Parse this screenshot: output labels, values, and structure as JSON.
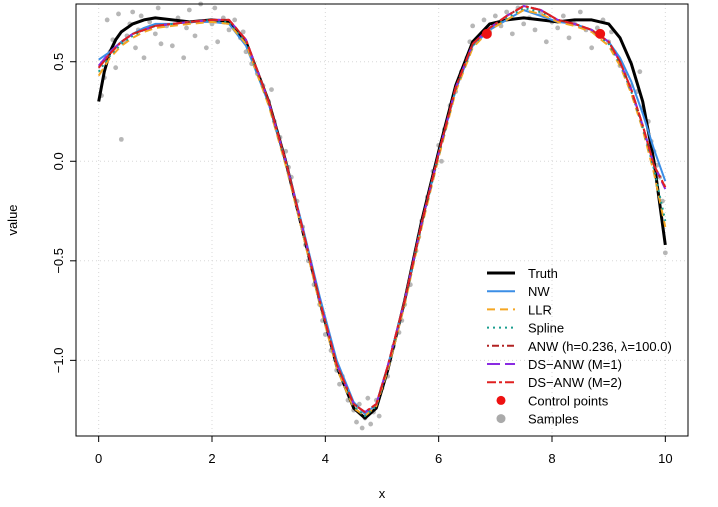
{
  "chart_data": {
    "type": "line",
    "title": "",
    "xlabel": "x",
    "ylabel": "value",
    "xlim": [
      -0.4,
      10.4
    ],
    "ylim": [
      -1.38,
      0.79
    ],
    "x_ticks": [
      0,
      2,
      4,
      6,
      8,
      10
    ],
    "x_tick_labels": [
      "0",
      "2",
      "4",
      "6",
      "8",
      "10"
    ],
    "y_ticks": [
      -1.0,
      -0.5,
      0.0,
      0.5
    ],
    "y_tick_labels": [
      "−1.0",
      "−0.5",
      "0.0",
      "0.5"
    ],
    "grid": true,
    "legend_position": "bottom-right",
    "series": [
      {
        "name": "Truth",
        "color": "#000000",
        "style": "solid",
        "x": [
          0,
          0.1,
          0.2,
          0.3,
          0.4,
          0.6,
          0.8,
          1.0,
          1.3,
          1.6,
          2.0,
          2.3,
          2.6,
          3.0,
          3.3,
          3.6,
          3.9,
          4.2,
          4.5,
          4.7,
          4.9,
          5.1,
          5.4,
          5.7,
          6.0,
          6.3,
          6.6,
          6.9,
          7.2,
          7.5,
          7.8,
          8.1,
          8.4,
          8.7,
          9.0,
          9.2,
          9.4,
          9.6,
          9.8,
          10.0
        ],
        "y": [
          0.3,
          0.45,
          0.55,
          0.61,
          0.65,
          0.69,
          0.71,
          0.72,
          0.71,
          0.7,
          0.71,
          0.7,
          0.6,
          0.3,
          0.0,
          -0.35,
          -0.7,
          -1.03,
          -1.24,
          -1.29,
          -1.24,
          -1.05,
          -0.7,
          -0.3,
          0.05,
          0.38,
          0.6,
          0.69,
          0.71,
          0.72,
          0.71,
          0.7,
          0.71,
          0.71,
          0.69,
          0.62,
          0.49,
          0.3,
          0.0,
          -0.42
        ]
      },
      {
        "name": "NW",
        "color": "#3b8ee6",
        "style": "solid",
        "x": [
          0,
          0.2,
          0.4,
          0.6,
          0.8,
          1.0,
          1.3,
          1.6,
          2.0,
          2.3,
          2.6,
          3.0,
          3.3,
          3.6,
          3.9,
          4.2,
          4.5,
          4.7,
          4.9,
          5.1,
          5.4,
          5.7,
          6.0,
          6.3,
          6.6,
          6.9,
          7.2,
          7.5,
          7.8,
          8.1,
          8.4,
          8.7,
          9.0,
          9.2,
          9.4,
          9.6,
          9.8,
          10.0
        ],
        "y": [
          0.51,
          0.55,
          0.6,
          0.64,
          0.67,
          0.69,
          0.69,
          0.7,
          0.7,
          0.69,
          0.58,
          0.29,
          0.0,
          -0.33,
          -0.68,
          -1.0,
          -1.21,
          -1.27,
          -1.22,
          -1.03,
          -0.7,
          -0.31,
          0.04,
          0.36,
          0.58,
          0.66,
          0.71,
          0.76,
          0.73,
          0.7,
          0.69,
          0.66,
          0.6,
          0.52,
          0.4,
          0.24,
          0.06,
          -0.1
        ]
      },
      {
        "name": "LLR",
        "color": "#f5a623",
        "style": "dashed",
        "x": [
          0,
          0.2,
          0.4,
          0.6,
          0.8,
          1.0,
          1.3,
          1.6,
          2.0,
          2.3,
          2.6,
          3.0,
          3.3,
          3.6,
          3.9,
          4.2,
          4.5,
          4.7,
          4.9,
          5.1,
          5.4,
          5.7,
          6.0,
          6.3,
          6.6,
          6.9,
          7.2,
          7.5,
          7.8,
          8.1,
          8.4,
          8.7,
          9.0,
          9.2,
          9.4,
          9.6,
          9.8,
          10.0
        ],
        "y": [
          0.43,
          0.52,
          0.58,
          0.62,
          0.65,
          0.67,
          0.68,
          0.69,
          0.7,
          0.69,
          0.59,
          0.28,
          -0.02,
          -0.36,
          -0.72,
          -1.04,
          -1.24,
          -1.28,
          -1.23,
          -1.05,
          -0.72,
          -0.33,
          0.02,
          0.35,
          0.57,
          0.66,
          0.71,
          0.76,
          0.74,
          0.7,
          0.68,
          0.65,
          0.58,
          0.48,
          0.34,
          0.16,
          -0.06,
          -0.33
        ]
      },
      {
        "name": "Spline",
        "color": "#1a9e8f",
        "style": "dotted",
        "x": [
          0,
          0.2,
          0.4,
          0.6,
          0.8,
          1.0,
          1.3,
          1.6,
          2.0,
          2.3,
          2.6,
          3.0,
          3.3,
          3.6,
          3.9,
          4.2,
          4.5,
          4.7,
          4.9,
          5.1,
          5.4,
          5.7,
          6.0,
          6.3,
          6.6,
          6.9,
          7.2,
          7.5,
          7.8,
          8.1,
          8.4,
          8.7,
          9.0,
          9.2,
          9.4,
          9.6,
          9.8,
          10.0
        ],
        "y": [
          0.45,
          0.53,
          0.59,
          0.63,
          0.66,
          0.68,
          0.69,
          0.7,
          0.71,
          0.7,
          0.6,
          0.29,
          -0.01,
          -0.35,
          -0.71,
          -1.03,
          -1.23,
          -1.28,
          -1.23,
          -1.04,
          -0.71,
          -0.32,
          0.03,
          0.36,
          0.58,
          0.67,
          0.72,
          0.77,
          0.75,
          0.71,
          0.69,
          0.66,
          0.59,
          0.49,
          0.35,
          0.17,
          -0.04,
          -0.3
        ]
      },
      {
        "name": "ANW (h=0.236, λ=100.0)",
        "color": "#b22222",
        "style": "dotdash",
        "x": [
          0,
          0.2,
          0.4,
          0.6,
          0.8,
          1.0,
          1.3,
          1.6,
          2.0,
          2.3,
          2.6,
          3.0,
          3.3,
          3.6,
          3.9,
          4.2,
          4.5,
          4.7,
          4.9,
          5.1,
          5.4,
          5.7,
          6.0,
          6.3,
          6.6,
          6.9,
          7.2,
          7.5,
          7.8,
          8.1,
          8.4,
          8.7,
          9.0,
          9.2,
          9.4,
          9.6,
          9.8,
          10.0
        ],
        "y": [
          0.47,
          0.54,
          0.6,
          0.64,
          0.66,
          0.68,
          0.69,
          0.7,
          0.71,
          0.71,
          0.61,
          0.3,
          0.0,
          -0.34,
          -0.7,
          -1.02,
          -1.22,
          -1.26,
          -1.22,
          -1.03,
          -0.7,
          -0.31,
          0.04,
          0.37,
          0.59,
          0.67,
          0.73,
          0.78,
          0.76,
          0.71,
          0.69,
          0.66,
          0.6,
          0.5,
          0.36,
          0.18,
          -0.02,
          -0.13
        ]
      },
      {
        "name": "DS−ANW (M=1)",
        "color": "#8a2be2",
        "style": "longdash",
        "x": [
          0,
          0.2,
          0.4,
          0.6,
          0.8,
          1.0,
          1.3,
          1.6,
          2.0,
          2.3,
          2.6,
          3.0,
          3.3,
          3.6,
          3.9,
          4.2,
          4.5,
          4.7,
          4.9,
          5.1,
          5.4,
          5.7,
          6.0,
          6.3,
          6.6,
          6.9,
          7.2,
          7.5,
          7.8,
          8.1,
          8.4,
          8.7,
          9.0,
          9.2,
          9.4,
          9.6,
          9.8,
          10.0
        ],
        "y": [
          0.48,
          0.55,
          0.6,
          0.64,
          0.66,
          0.68,
          0.69,
          0.7,
          0.71,
          0.71,
          0.61,
          0.3,
          0.0,
          -0.34,
          -0.7,
          -1.02,
          -1.22,
          -1.26,
          -1.22,
          -1.03,
          -0.7,
          -0.31,
          0.04,
          0.37,
          0.59,
          0.67,
          0.73,
          0.78,
          0.76,
          0.71,
          0.69,
          0.66,
          0.6,
          0.5,
          0.36,
          0.18,
          -0.02,
          -0.14
        ]
      },
      {
        "name": "DS−ANW (M=2)",
        "color": "#e02020",
        "style": "twodash",
        "x": [
          0,
          0.2,
          0.4,
          0.6,
          0.8,
          1.0,
          1.3,
          1.6,
          2.0,
          2.3,
          2.6,
          3.0,
          3.3,
          3.6,
          3.9,
          4.2,
          4.5,
          4.7,
          4.9,
          5.1,
          5.4,
          5.7,
          6.0,
          6.3,
          6.6,
          6.9,
          7.2,
          7.5,
          7.8,
          8.1,
          8.4,
          8.7,
          9.0,
          9.2,
          9.4,
          9.6,
          9.8,
          10.0
        ],
        "y": [
          0.47,
          0.54,
          0.6,
          0.64,
          0.66,
          0.68,
          0.69,
          0.7,
          0.71,
          0.71,
          0.61,
          0.3,
          0.0,
          -0.34,
          -0.7,
          -1.02,
          -1.22,
          -1.26,
          -1.22,
          -1.03,
          -0.7,
          -0.31,
          0.04,
          0.37,
          0.59,
          0.67,
          0.73,
          0.78,
          0.76,
          0.71,
          0.69,
          0.66,
          0.6,
          0.5,
          0.36,
          0.18,
          -0.02,
          -0.13
        ]
      }
    ],
    "control_points": {
      "name": "Control points",
      "color": "#ee1111",
      "points": [
        [
          6.85,
          0.64
        ],
        [
          8.85,
          0.64
        ]
      ]
    },
    "samples": {
      "name": "Samples",
      "color": "#aaaaaa",
      "points": [
        [
          0.05,
          0.33
        ],
        [
          0.1,
          0.42
        ],
        [
          0.15,
          0.71
        ],
        [
          0.2,
          0.55
        ],
        [
          0.25,
          0.61
        ],
        [
          0.3,
          0.47
        ],
        [
          0.35,
          0.74
        ],
        [
          0.4,
          0.11
        ],
        [
          0.45,
          0.6
        ],
        [
          0.5,
          0.63
        ],
        [
          0.55,
          0.69
        ],
        [
          0.6,
          0.75
        ],
        [
          0.65,
          0.57
        ],
        [
          0.7,
          0.66
        ],
        [
          0.75,
          0.73
        ],
        [
          0.8,
          0.52
        ],
        [
          0.9,
          0.7
        ],
        [
          1.0,
          0.64
        ],
        [
          1.05,
          0.77
        ],
        [
          1.1,
          0.59
        ],
        [
          1.2,
          0.68
        ],
        [
          1.3,
          0.58
        ],
        [
          1.4,
          0.72
        ],
        [
          1.5,
          0.52
        ],
        [
          1.55,
          0.67
        ],
        [
          1.6,
          0.76
        ],
        [
          1.7,
          0.63
        ],
        [
          1.8,
          0.79
        ],
        [
          1.9,
          0.57
        ],
        [
          2.0,
          0.69
        ],
        [
          2.05,
          0.77
        ],
        [
          2.1,
          0.6
        ],
        [
          2.2,
          0.72
        ],
        [
          2.3,
          0.66
        ],
        [
          2.4,
          0.71
        ],
        [
          2.5,
          0.62
        ],
        [
          2.55,
          0.65
        ],
        [
          2.6,
          0.55
        ],
        [
          2.7,
          0.49
        ],
        [
          2.8,
          0.44
        ],
        [
          2.9,
          0.38
        ],
        [
          3.0,
          0.3
        ],
        [
          3.05,
          0.36
        ],
        [
          3.1,
          0.2
        ],
        [
          3.2,
          0.12
        ],
        [
          3.3,
          0.05
        ],
        [
          3.35,
          -0.03
        ],
        [
          3.4,
          -0.08
        ],
        [
          3.5,
          -0.2
        ],
        [
          3.6,
          -0.33
        ],
        [
          3.65,
          -0.42
        ],
        [
          3.7,
          -0.5
        ],
        [
          3.8,
          -0.62
        ],
        [
          3.9,
          -0.72
        ],
        [
          3.95,
          -0.8
        ],
        [
          4.0,
          -0.87
        ],
        [
          4.1,
          -0.95
        ],
        [
          4.2,
          -1.05
        ],
        [
          4.25,
          -1.12
        ],
        [
          4.3,
          -1.08
        ],
        [
          4.4,
          -1.2
        ],
        [
          4.5,
          -1.25
        ],
        [
          4.55,
          -1.31
        ],
        [
          4.6,
          -1.22
        ],
        [
          4.65,
          -1.34
        ],
        [
          4.7,
          -1.29
        ],
        [
          4.75,
          -1.19
        ],
        [
          4.8,
          -1.32
        ],
        [
          4.85,
          -1.26
        ],
        [
          4.9,
          -1.2
        ],
        [
          4.95,
          -1.28
        ],
        [
          5.0,
          -1.14
        ],
        [
          5.1,
          -1.08
        ],
        [
          5.2,
          -0.93
        ],
        [
          5.3,
          -0.86
        ],
        [
          5.35,
          -0.8
        ],
        [
          5.4,
          -0.72
        ],
        [
          5.5,
          -0.62
        ],
        [
          5.6,
          -0.45
        ],
        [
          5.65,
          -0.38
        ],
        [
          5.7,
          -0.3
        ],
        [
          5.8,
          -0.18
        ],
        [
          5.9,
          -0.05
        ],
        [
          6.0,
          0.08
        ],
        [
          6.05,
          0.0
        ],
        [
          6.1,
          0.16
        ],
        [
          6.2,
          0.28
        ],
        [
          6.3,
          0.35
        ],
        [
          6.4,
          0.45
        ],
        [
          6.5,
          0.52
        ],
        [
          6.55,
          0.6
        ],
        [
          6.6,
          0.68
        ],
        [
          6.7,
          0.62
        ],
        [
          6.8,
          0.71
        ],
        [
          6.9,
          0.65
        ],
        [
          7.0,
          0.73
        ],
        [
          7.1,
          0.68
        ],
        [
          7.2,
          0.75
        ],
        [
          7.3,
          0.64
        ],
        [
          7.4,
          0.77
        ],
        [
          7.5,
          0.69
        ],
        [
          7.6,
          0.72
        ],
        [
          7.7,
          0.66
        ],
        [
          7.8,
          0.74
        ],
        [
          7.9,
          0.6
        ],
        [
          8.0,
          0.7
        ],
        [
          8.1,
          0.67
        ],
        [
          8.2,
          0.73
        ],
        [
          8.3,
          0.62
        ],
        [
          8.4,
          0.69
        ],
        [
          8.5,
          0.75
        ],
        [
          8.6,
          0.66
        ],
        [
          8.7,
          0.57
        ],
        [
          8.8,
          0.67
        ],
        [
          8.9,
          0.71
        ],
        [
          9.0,
          0.6
        ],
        [
          9.05,
          0.65
        ],
        [
          9.1,
          0.55
        ],
        [
          9.2,
          0.48
        ],
        [
          9.3,
          0.44
        ],
        [
          9.4,
          0.38
        ],
        [
          9.5,
          0.35
        ],
        [
          9.55,
          0.45
        ],
        [
          9.6,
          0.27
        ],
        [
          9.7,
          0.2
        ],
        [
          9.75,
          0.1
        ],
        [
          9.8,
          0.05
        ],
        [
          9.85,
          -0.02
        ],
        [
          9.9,
          -0.08
        ],
        [
          9.95,
          -0.2
        ],
        [
          10.0,
          -0.46
        ]
      ]
    },
    "legend": [
      {
        "label": "Truth",
        "kind": "line",
        "color": "#000000",
        "style": "solid"
      },
      {
        "label": "NW",
        "kind": "line",
        "color": "#3b8ee6",
        "style": "solid"
      },
      {
        "label": "LLR",
        "kind": "line",
        "color": "#f5a623",
        "style": "dashed"
      },
      {
        "label": "Spline",
        "kind": "line",
        "color": "#1a9e8f",
        "style": "dotted"
      },
      {
        "label": "ANW (h=0.236, λ=100.0)",
        "kind": "line",
        "color": "#b22222",
        "style": "dotdash"
      },
      {
        "label": "DS−ANW (M=1)",
        "kind": "line",
        "color": "#8a2be2",
        "style": "longdash"
      },
      {
        "label": "DS−ANW (M=2)",
        "kind": "line",
        "color": "#e02020",
        "style": "twodash"
      },
      {
        "label": "Control points",
        "kind": "point",
        "color": "#ee1111"
      },
      {
        "label": "Samples",
        "kind": "point",
        "color": "#aaaaaa"
      }
    ]
  }
}
